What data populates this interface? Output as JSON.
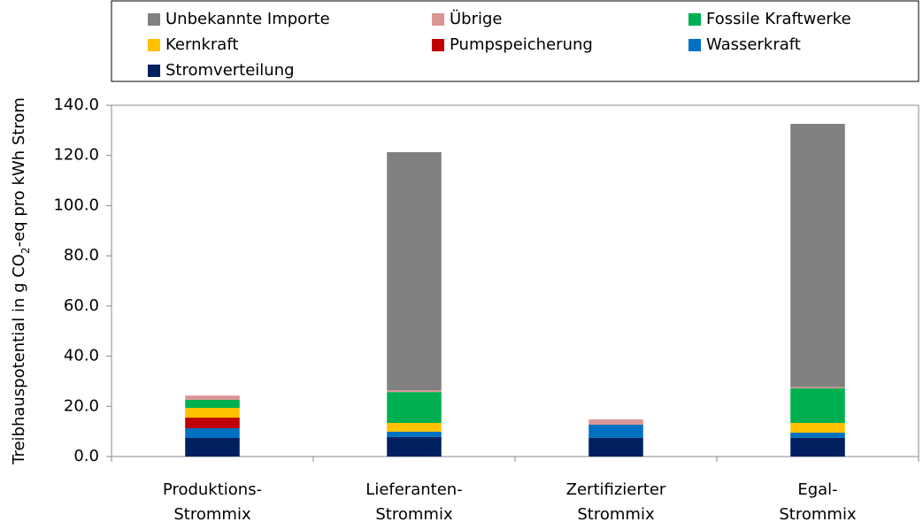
{
  "chart_data": {
    "type": "stacked_bar",
    "ylabel": [
      "Treibhauspotential in  g CO",
      "2",
      "-eq pro kWh Strom"
    ],
    "categories": [
      [
        "Produktions-",
        "Strommix"
      ],
      [
        "Lieferanten-",
        "Strommix"
      ],
      [
        "Zertifizierter",
        "Strommix"
      ],
      [
        "Egal-",
        "Strommix"
      ]
    ],
    "series": [
      {
        "name": "Stromverteilung",
        "color": "#002060",
        "values": [
          7.4,
          7.8,
          7.5,
          7.5
        ]
      },
      {
        "name": "Wasserkraft",
        "color": "#0070c0",
        "values": [
          3.9,
          2.1,
          5.2,
          2.0
        ]
      },
      {
        "name": "Pumpspeicherung",
        "color": "#c00000",
        "values": [
          4.2,
          0,
          0,
          0
        ]
      },
      {
        "name": "Kernkraft",
        "color": "#ffc000",
        "values": [
          3.9,
          3.5,
          0,
          3.9
        ]
      },
      {
        "name": "Fossile Kraftwerke",
        "color": "#00b050",
        "values": [
          3.2,
          12.3,
          0,
          13.8
        ]
      },
      {
        "name": "Übrige",
        "color": "#d99694",
        "values": [
          1.7,
          0.7,
          2.1,
          0.5
        ]
      },
      {
        "name": "Unbekannte Importe",
        "color": "#808080",
        "values": [
          0,
          94.9,
          0,
          104.9
        ]
      }
    ],
    "ylim": [
      0,
      140
    ],
    "yticks": [
      {
        "value": 0,
        "label": "0.0"
      },
      {
        "value": 20,
        "label": "20.0"
      },
      {
        "value": 40,
        "label": "40.0"
      },
      {
        "value": 60,
        "label": "60.0"
      },
      {
        "value": 80,
        "label": "80.0"
      },
      {
        "value": 100,
        "label": "100.0"
      },
      {
        "value": 120,
        "label": "120.0"
      },
      {
        "value": 140,
        "label": "140.0"
      }
    ],
    "grid": false,
    "legend": "top"
  }
}
